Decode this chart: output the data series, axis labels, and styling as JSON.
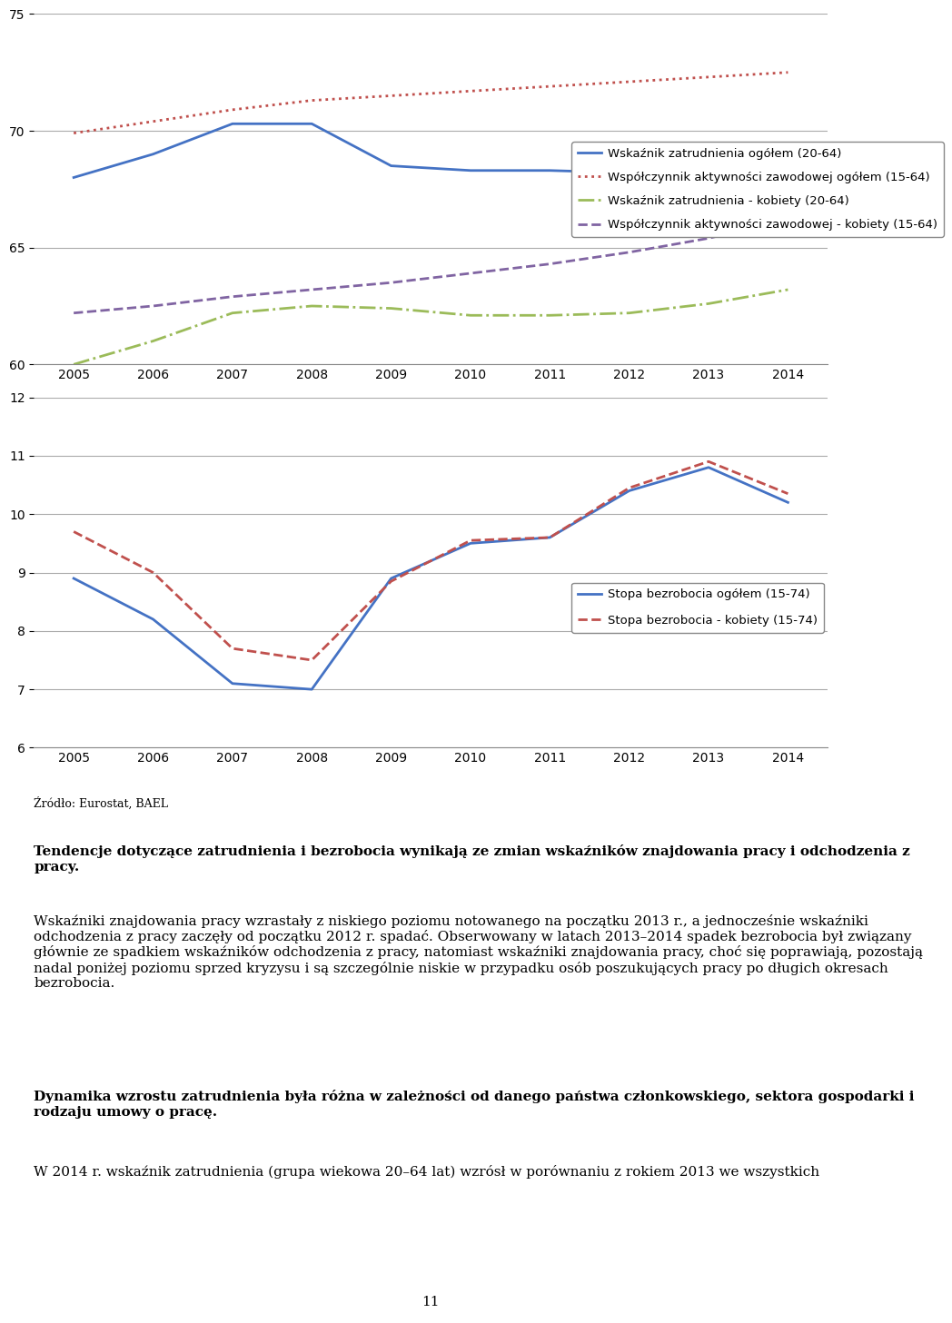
{
  "years": [
    2005,
    2006,
    2007,
    2008,
    2009,
    2010,
    2011,
    2012,
    2013,
    2014
  ],
  "chart1": {
    "ylim": [
      60,
      75
    ],
    "yticks": [
      60,
      65,
      70,
      75
    ],
    "series": {
      "wskaznik_zatrudnienia_ogol": {
        "values": [
          68.0,
          69.0,
          70.3,
          70.3,
          68.5,
          68.3,
          68.3,
          68.2,
          68.3,
          69.2
        ],
        "color": "#4472C4",
        "linestyle": "solid",
        "linewidth": 2.0,
        "label": "Wskaźnik zatrudnienia ogółem (20-64)"
      },
      "wspolczynnik_aktywnosci_ogol": {
        "values": [
          69.9,
          70.4,
          70.9,
          71.3,
          71.5,
          71.7,
          71.9,
          72.1,
          72.3,
          72.5
        ],
        "color": "#C0504D",
        "linestyle": "dotted",
        "linewidth": 2.0,
        "label": "Współczynnik aktywności zawodowej ogółem (15-64)"
      },
      "wskaznik_zatrudnienia_k": {
        "values": [
          60.0,
          61.0,
          62.2,
          62.5,
          62.4,
          62.1,
          62.1,
          62.2,
          62.6,
          63.2
        ],
        "color": "#9BBB59",
        "linestyle": "dashdot",
        "linewidth": 2.0,
        "label": "Wskaźnik zatrudnienia - kobiety (20-64)"
      },
      "wspolczynnik_aktywnosci_k": {
        "values": [
          62.2,
          62.5,
          62.9,
          63.2,
          63.5,
          63.9,
          64.3,
          64.8,
          65.4,
          66.2
        ],
        "color": "#8064A2",
        "linestyle": "dashed",
        "linewidth": 2.0,
        "label": "Współczynnik aktywności zawodowej - kobiety (15-64)"
      }
    }
  },
  "chart2": {
    "ylim": [
      6,
      12
    ],
    "yticks": [
      6,
      7,
      8,
      9,
      10,
      11,
      12
    ],
    "series": {
      "stopa_bezrobocia_ogol": {
        "values": [
          8.9,
          8.2,
          7.1,
          7.0,
          8.9,
          9.5,
          9.6,
          10.4,
          10.8,
          10.2
        ],
        "color": "#4472C4",
        "linestyle": "solid",
        "linewidth": 2.0,
        "label": "Stopa bezrobocia ogółem (15-74)"
      },
      "stopa_bezrobocia_k": {
        "values": [
          9.7,
          9.0,
          7.7,
          7.5,
          8.85,
          9.55,
          9.6,
          10.45,
          10.9,
          10.35
        ],
        "color": "#C0504D",
        "linestyle": "dashed",
        "linewidth": 2.0,
        "label": "Stopa bezrobocia - kobiety (15-74)"
      }
    }
  },
  "source_text": "Źródło: Eurostat, BAEL",
  "paragraph1_bold": "Tendencje dotyczące zatrudnienia i bezrobocia wynikają ze zmian wskaźników znajdowania pracy i odchodzenia z pracy.",
  "paragraph1_normal": " Wskaźniki znajdowania pracy wzrastały z niskiego poziomu notowanego na początku 2013 r., a jednocześnie wskaźniki odchodzenia z pracy zaczęły od początku 2012 r. spadać. Obserwowany w latach 2013–2014 spadek bezrobocia był związany głównie ze spadkiem wskaźników odchodzenia z pracy, natomiast wskaźniki znajdowania pracy, choć się poprawiają, pozostają nadal poniżej poziomu sprzed kryzysu i są szczególnie niskie w przypadku osób poszukujących pracy po długich okresach bezrobocia.",
  "paragraph2_bold": "Dynamika wzrostu zatrudnienia była różna w zależności od danego państwa członkowskiego, sektora gospodarki i rodzaju umowy o pracę.",
  "paragraph2_normal": " W 2014 r. wskaźnik zatrudnienia (grupa wiekowa 20–64 lat) wzrósł w porównaniu z rokiem 2013 we wszystkich",
  "page_number": "11",
  "background_color": "#FFFFFF",
  "grid_color": "#AAAAAA",
  "text_color": "#000000",
  "font_size_axis": 10,
  "font_size_legend": 9.5,
  "font_size_source": 9,
  "font_size_text": 11
}
